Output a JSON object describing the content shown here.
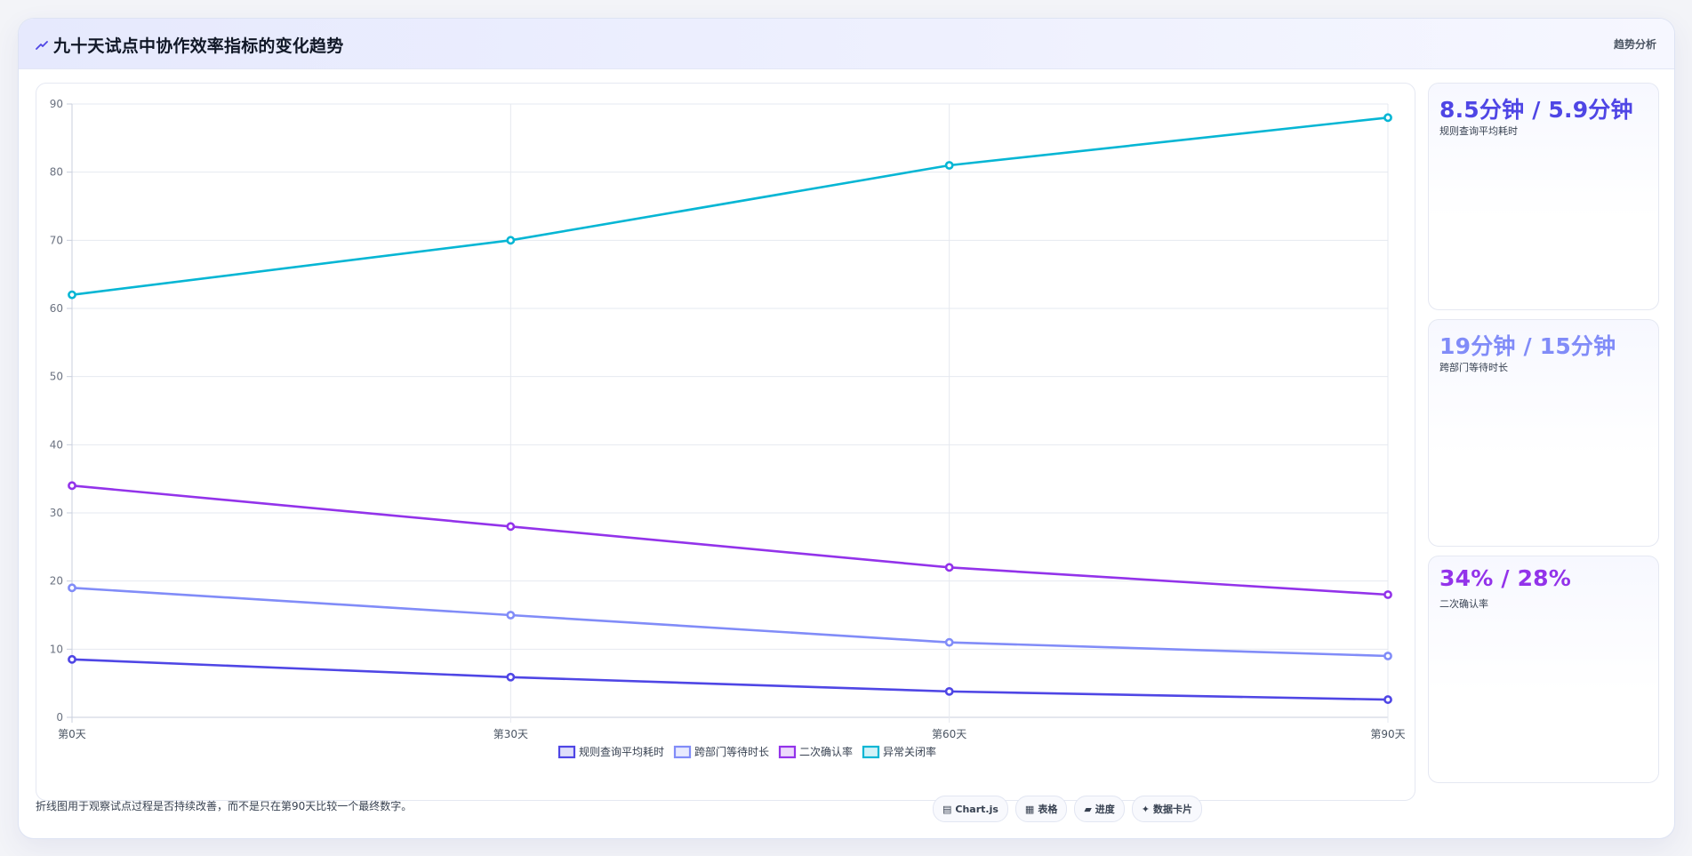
{
  "header": {
    "title": "九十天试点中协作效率指标的变化趋势",
    "tag": "趋势分析",
    "icon": "trend-line-icon"
  },
  "chart_data": {
    "type": "line",
    "x": [
      "第0天",
      "第30天",
      "第60天",
      "第90天"
    ],
    "ylim": [
      0,
      90
    ],
    "yticks": [
      0,
      10,
      20,
      30,
      40,
      50,
      60,
      70,
      80,
      90
    ],
    "grid": true,
    "legend_position": "bottom",
    "series": [
      {
        "name": "规则查询平均耗时",
        "color": "#4f46e5",
        "values": [
          8.5,
          5.9,
          3.8,
          2.6
        ]
      },
      {
        "name": "跨部门等待时长",
        "color": "#818cf8",
        "values": [
          19,
          15,
          11,
          9
        ]
      },
      {
        "name": "二次确认率",
        "color": "#9333ea",
        "values": [
          34,
          28,
          22,
          18
        ]
      },
      {
        "name": "异常关闭率",
        "color": "#06b6d4",
        "values": [
          62,
          70,
          81,
          88
        ]
      }
    ]
  },
  "side_cards": [
    {
      "value": "8.5分钟 / 5.9分钟",
      "label": "规则查询平均耗时",
      "color": "#4f46e5"
    },
    {
      "value": "19分钟 / 15分钟",
      "label": "跨部门等待时长",
      "color": "#818cf8"
    },
    {
      "value": "34% / 28%",
      "label": "二次确认率",
      "color": "#9333ea"
    }
  ],
  "footer": {
    "note": "折线图用于观察试点过程是否持续改善，而不是只在第90天比较一个最终数字。",
    "buttons": [
      {
        "icon": "▤",
        "icon_name": "chart-icon",
        "label": "Chart.js"
      },
      {
        "icon": "▦",
        "icon_name": "table-icon",
        "label": "表格"
      },
      {
        "icon": "▰",
        "icon_name": "progress-icon",
        "label": "进度"
      },
      {
        "icon": "✦",
        "icon_name": "data-card-icon",
        "label": "数据卡片"
      }
    ]
  }
}
